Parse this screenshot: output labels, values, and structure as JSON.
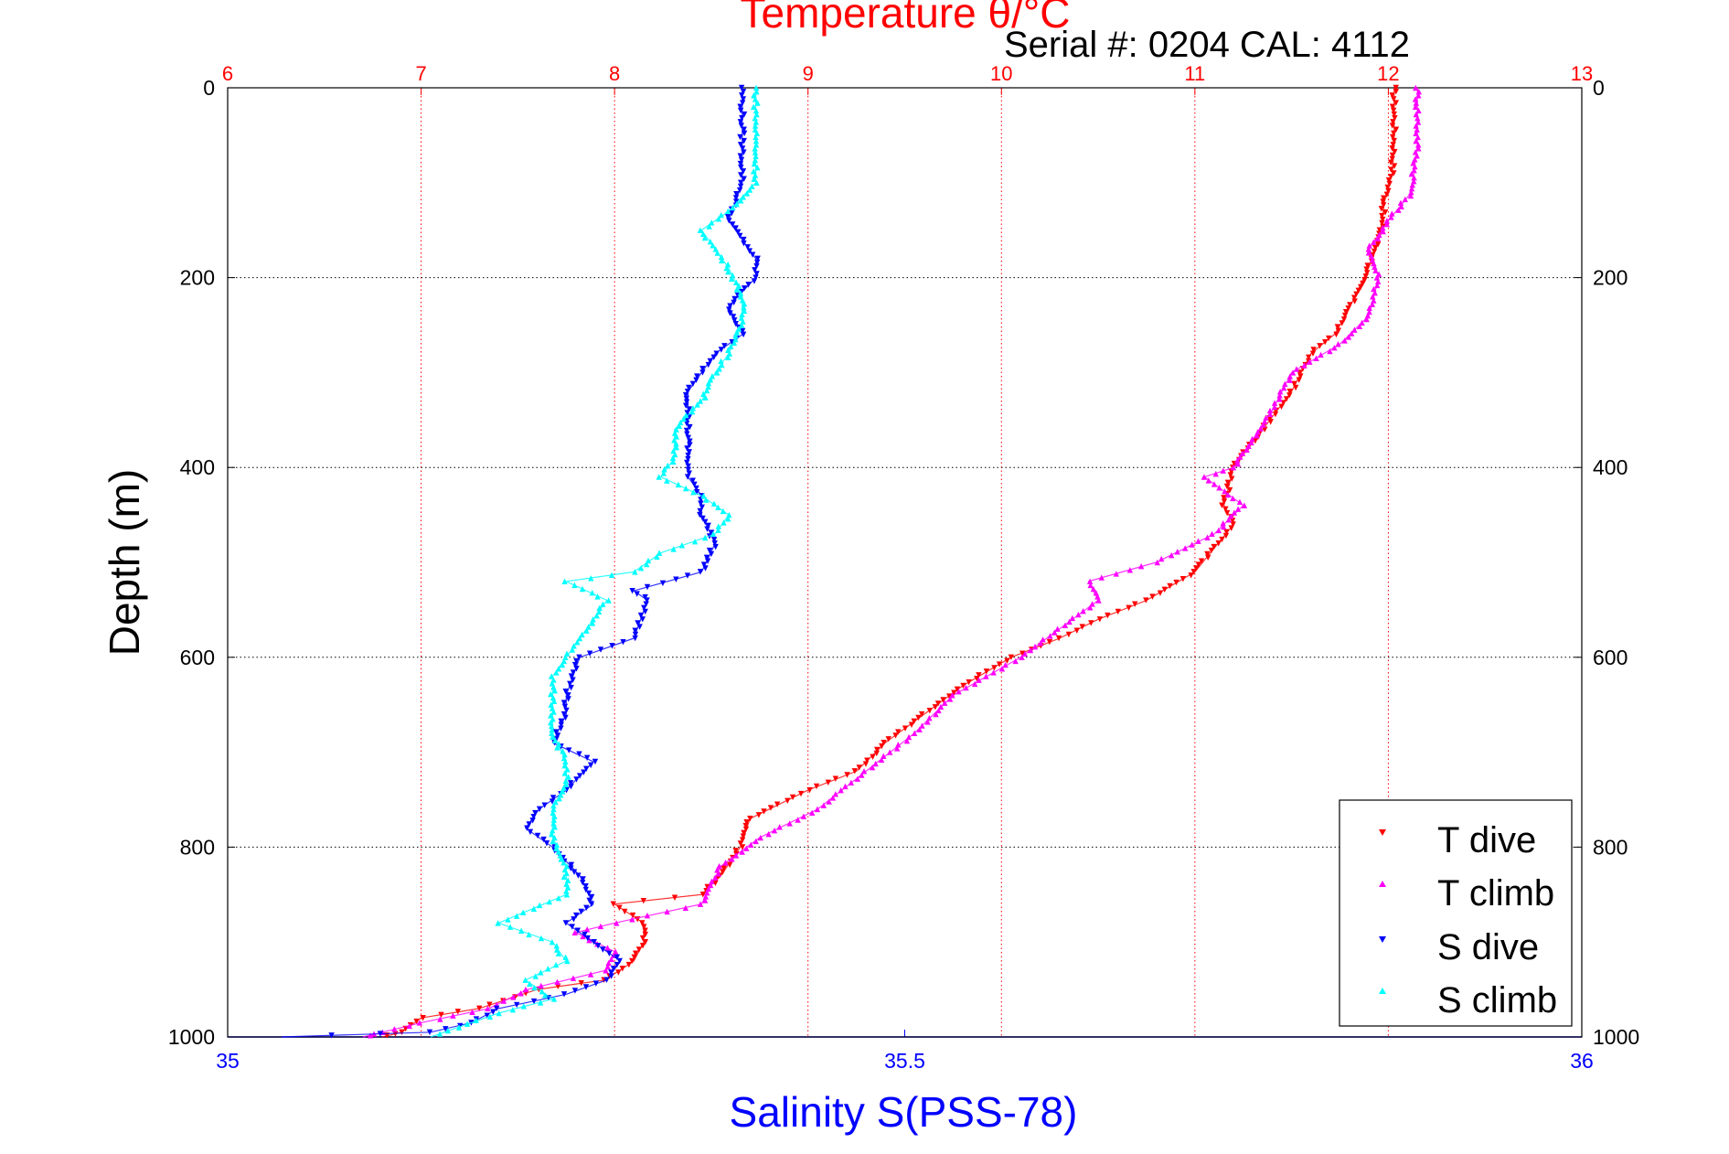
{
  "title": "Temperature θ/°C",
  "subtitle": "Serial #: 0204  CAL: 4112",
  "chart_data": {
    "type": "scatter",
    "xlabel_top": "Temperature θ/°C",
    "xlabel_bottom": "Salinity S(PSS-78)",
    "ylabel": "Depth (m)",
    "temperature_axis": {
      "range": [
        6,
        13
      ],
      "ticks": [
        "6",
        "7",
        "8",
        "9",
        "10",
        "11",
        "12",
        "13"
      ],
      "color": "#ff0000"
    },
    "salinity_axis": {
      "range": [
        35,
        36
      ],
      "ticks": [
        "35",
        "35.5",
        "36"
      ],
      "color": "#0000ff"
    },
    "depth_axis": {
      "range": [
        0,
        1000
      ],
      "inverted": true,
      "ticks": [
        "0",
        "200",
        "400",
        "600",
        "800",
        "1000"
      ]
    },
    "grid": true,
    "legend_position": "bottom-right",
    "series": [
      {
        "name": "T dive",
        "axis": "temperature",
        "color": "#ff0000",
        "marker": "triangle-down",
        "points": [
          [
            12.03,
            0
          ],
          [
            12.03,
            60
          ],
          [
            12.02,
            90
          ],
          [
            11.98,
            120
          ],
          [
            11.96,
            150
          ],
          [
            11.92,
            180
          ],
          [
            11.85,
            210
          ],
          [
            11.78,
            240
          ],
          [
            11.72,
            260
          ],
          [
            11.6,
            280
          ],
          [
            11.5,
            320
          ],
          [
            11.35,
            360
          ],
          [
            11.2,
            400
          ],
          [
            11.15,
            440
          ],
          [
            11.2,
            460
          ],
          [
            11.12,
            480
          ],
          [
            11.0,
            510
          ],
          [
            10.75,
            540
          ],
          [
            10.5,
            560
          ],
          [
            10.3,
            580
          ],
          [
            10.05,
            600
          ],
          [
            9.8,
            630
          ],
          [
            9.6,
            660
          ],
          [
            9.4,
            690
          ],
          [
            9.25,
            720
          ],
          [
            9.0,
            740
          ],
          [
            8.7,
            770
          ],
          [
            8.65,
            800
          ],
          [
            8.55,
            830
          ],
          [
            8.45,
            850
          ],
          [
            8.0,
            860
          ],
          [
            8.15,
            880
          ],
          [
            8.15,
            900
          ],
          [
            8.1,
            920
          ],
          [
            7.95,
            940
          ],
          [
            7.6,
            950
          ],
          [
            7.3,
            970
          ],
          [
            7.0,
            980
          ],
          [
            6.9,
            995
          ],
          [
            6.8,
            1000
          ]
        ]
      },
      {
        "name": "T climb",
        "axis": "temperature",
        "color": "#ff00ff",
        "marker": "triangle-up",
        "points": [
          [
            12.15,
            0
          ],
          [
            12.15,
            60
          ],
          [
            12.12,
            110
          ],
          [
            12.0,
            140
          ],
          [
            11.9,
            170
          ],
          [
            11.95,
            200
          ],
          [
            11.9,
            240
          ],
          [
            11.75,
            270
          ],
          [
            11.5,
            300
          ],
          [
            11.4,
            340
          ],
          [
            11.3,
            370
          ],
          [
            11.2,
            400
          ],
          [
            11.05,
            410
          ],
          [
            11.25,
            440
          ],
          [
            11.1,
            470
          ],
          [
            10.8,
            500
          ],
          [
            10.45,
            520
          ],
          [
            10.5,
            540
          ],
          [
            10.3,
            570
          ],
          [
            10.1,
            600
          ],
          [
            9.75,
            640
          ],
          [
            9.55,
            680
          ],
          [
            9.3,
            720
          ],
          [
            9.05,
            760
          ],
          [
            8.75,
            790
          ],
          [
            8.55,
            820
          ],
          [
            8.45,
            860
          ],
          [
            8.0,
            880
          ],
          [
            7.8,
            890
          ],
          [
            8.0,
            910
          ],
          [
            7.95,
            930
          ],
          [
            7.55,
            950
          ],
          [
            7.35,
            970
          ],
          [
            7.0,
            985
          ],
          [
            6.8,
            995
          ],
          [
            6.7,
            1000
          ]
        ]
      },
      {
        "name": "S dive",
        "axis": "salinity",
        "color": "#0000ff",
        "marker": "triangle-down",
        "points": [
          [
            35.38,
            0
          ],
          [
            35.38,
            60
          ],
          [
            35.38,
            100
          ],
          [
            35.37,
            140
          ],
          [
            35.38,
            160
          ],
          [
            35.39,
            180
          ],
          [
            35.39,
            200
          ],
          [
            35.37,
            230
          ],
          [
            35.38,
            260
          ],
          [
            35.36,
            280
          ],
          [
            35.35,
            300
          ],
          [
            35.34,
            320
          ],
          [
            35.34,
            350
          ],
          [
            35.34,
            380
          ],
          [
            35.34,
            410
          ],
          [
            35.35,
            430
          ],
          [
            35.35,
            450
          ],
          [
            35.36,
            480
          ],
          [
            35.35,
            510
          ],
          [
            35.3,
            530
          ],
          [
            35.31,
            540
          ],
          [
            35.3,
            580
          ],
          [
            35.26,
            600
          ],
          [
            35.25,
            640
          ],
          [
            35.25,
            660
          ],
          [
            35.24,
            690
          ],
          [
            35.27,
            710
          ],
          [
            35.25,
            740
          ],
          [
            35.23,
            760
          ],
          [
            35.22,
            780
          ],
          [
            35.24,
            800
          ],
          [
            35.26,
            830
          ],
          [
            35.27,
            860
          ],
          [
            35.25,
            880
          ],
          [
            35.27,
            900
          ],
          [
            35.29,
            920
          ],
          [
            35.28,
            940
          ],
          [
            35.25,
            955
          ],
          [
            35.2,
            970
          ],
          [
            35.18,
            985
          ],
          [
            35.15,
            995
          ],
          [
            35.04,
            1000
          ]
        ]
      },
      {
        "name": "S climb",
        "axis": "salinity",
        "color": "#00ffff",
        "marker": "triangle-up",
        "points": [
          [
            35.39,
            0
          ],
          [
            35.39,
            60
          ],
          [
            35.39,
            100
          ],
          [
            35.37,
            130
          ],
          [
            35.35,
            150
          ],
          [
            35.36,
            170
          ],
          [
            35.37,
            190
          ],
          [
            35.38,
            220
          ],
          [
            35.38,
            250
          ],
          [
            35.37,
            280
          ],
          [
            35.36,
            300
          ],
          [
            35.35,
            330
          ],
          [
            35.33,
            360
          ],
          [
            35.33,
            390
          ],
          [
            35.32,
            410
          ],
          [
            35.35,
            430
          ],
          [
            35.37,
            450
          ],
          [
            35.36,
            470
          ],
          [
            35.32,
            490
          ],
          [
            35.3,
            510
          ],
          [
            35.25,
            520
          ],
          [
            35.28,
            540
          ],
          [
            35.27,
            560
          ],
          [
            35.26,
            580
          ],
          [
            35.25,
            600
          ],
          [
            35.24,
            620
          ],
          [
            35.24,
            650
          ],
          [
            35.24,
            680
          ],
          [
            35.25,
            710
          ],
          [
            35.25,
            730
          ],
          [
            35.24,
            760
          ],
          [
            35.24,
            790
          ],
          [
            35.25,
            820
          ],
          [
            35.25,
            850
          ],
          [
            35.2,
            880
          ],
          [
            35.24,
            900
          ],
          [
            35.25,
            920
          ],
          [
            35.22,
            940
          ],
          [
            35.24,
            960
          ],
          [
            35.2,
            975
          ],
          [
            35.17,
            990
          ],
          [
            35.15,
            1000
          ]
        ]
      }
    ]
  }
}
